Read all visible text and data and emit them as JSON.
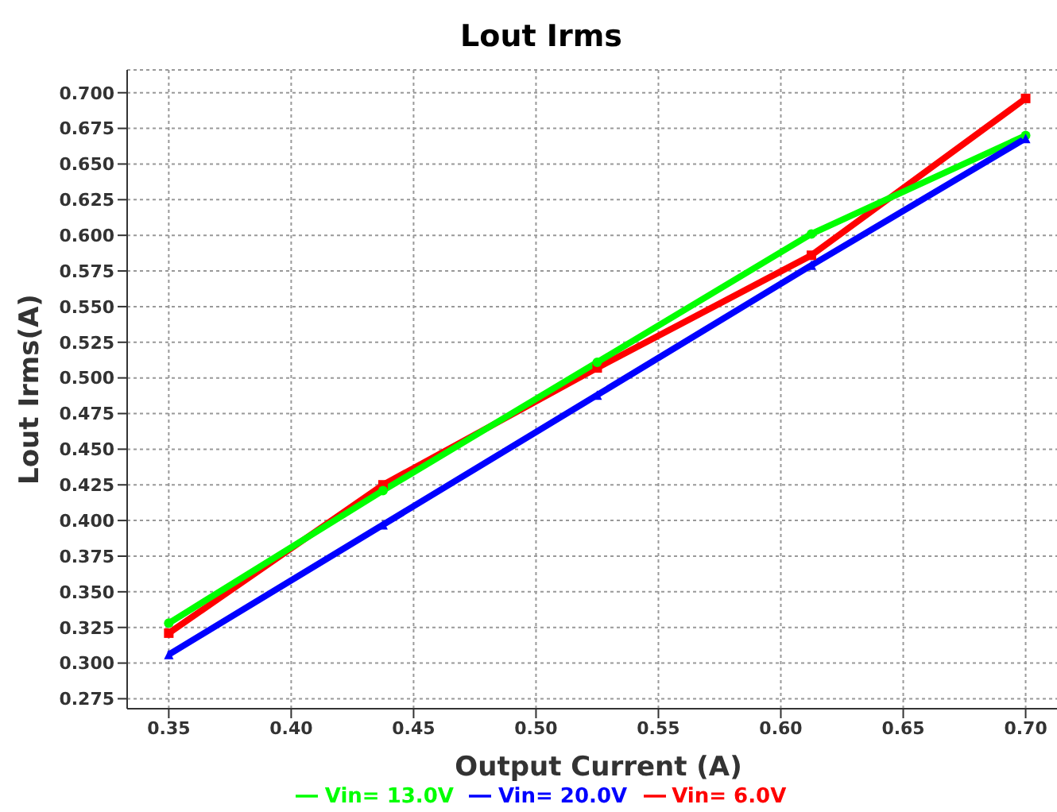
{
  "chart_data": {
    "type": "line",
    "title": "Lout Irms",
    "xlabel": "Output Current (A)",
    "ylabel": "Lout Irms(A)",
    "x": [
      0.35,
      0.4375,
      0.525,
      0.6125,
      0.7
    ],
    "series": [
      {
        "name": "Vin= 6.0V",
        "color": "#ff0000",
        "marker": "square",
        "values": [
          0.321,
          0.425,
          0.507,
          0.586,
          0.696
        ]
      },
      {
        "name": "Vin= 13.0V",
        "color": "#00ff00",
        "marker": "circle",
        "values": [
          0.328,
          0.421,
          0.511,
          0.601,
          0.67
        ]
      },
      {
        "name": "Vin= 20.0V",
        "color": "#0000ff",
        "marker": "triangle",
        "values": [
          0.306,
          0.397,
          0.488,
          0.579,
          0.668
        ]
      }
    ],
    "xlim": [
      0.333,
      0.718
    ],
    "xticks": [
      {
        "value": 0.35,
        "label": "0.35"
      },
      {
        "value": 0.4,
        "label": "0.40"
      },
      {
        "value": 0.45,
        "label": "0.45"
      },
      {
        "value": 0.5,
        "label": "0.50"
      },
      {
        "value": 0.55,
        "label": "0.55"
      },
      {
        "value": 0.6,
        "label": "0.60"
      },
      {
        "value": 0.65,
        "label": "0.65"
      },
      {
        "value": 0.7,
        "label": "0.70"
      }
    ],
    "ylim": [
      0.268,
      0.716
    ],
    "yticks": [
      {
        "value": 0.275,
        "label": "0.275"
      },
      {
        "value": 0.3,
        "label": "0.300"
      },
      {
        "value": 0.325,
        "label": "0.325"
      },
      {
        "value": 0.35,
        "label": "0.350"
      },
      {
        "value": 0.375,
        "label": "0.375"
      },
      {
        "value": 0.4,
        "label": "0.400"
      },
      {
        "value": 0.425,
        "label": "0.425"
      },
      {
        "value": 0.45,
        "label": "0.450"
      },
      {
        "value": 0.475,
        "label": "0.475"
      },
      {
        "value": 0.5,
        "label": "0.500"
      },
      {
        "value": 0.525,
        "label": "0.525"
      },
      {
        "value": 0.55,
        "label": "0.550"
      },
      {
        "value": 0.575,
        "label": "0.575"
      },
      {
        "value": 0.6,
        "label": "0.600"
      },
      {
        "value": 0.625,
        "label": "0.625"
      },
      {
        "value": 0.65,
        "label": "0.650"
      },
      {
        "value": 0.675,
        "label": "0.675"
      },
      {
        "value": 0.7,
        "label": "0.700"
      }
    ],
    "grid": true,
    "legend": "bottom",
    "line_style": "solid"
  }
}
